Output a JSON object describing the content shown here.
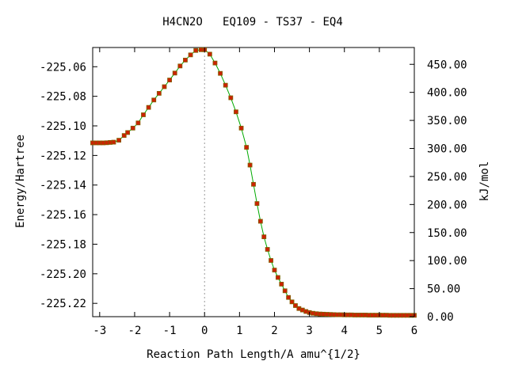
{
  "chart_data": {
    "type": "line",
    "title": "H4CN2O   EQ109 - TS37 - EQ4",
    "xlabel": "Reaction Path Length/A amu^{1/2}",
    "ylabel": "Energy/Hartree",
    "y2label": "kJ/mol",
    "xlim": [
      -3.2,
      6.0
    ],
    "ylim": [
      -225.229,
      -225.047
    ],
    "y2lim": [
      0,
      480
    ],
    "x_ticks": [
      -3,
      -2,
      -1,
      0,
      1,
      2,
      3,
      4,
      5,
      6
    ],
    "x_tick_labels": [
      "-3",
      "-2",
      "-1",
      "0",
      "1",
      "2",
      "3",
      "4",
      "5",
      "6"
    ],
    "y_ticks": [
      -225.06,
      -225.08,
      -225.1,
      -225.12,
      -225.14,
      -225.16,
      -225.18,
      -225.2,
      -225.22
    ],
    "y_tick_labels": [
      "-225.06",
      "-225.08",
      "-225.10",
      "-225.12",
      "-225.14",
      "-225.16",
      "-225.18",
      "-225.20",
      "-225.22"
    ],
    "y2_ticks": [
      0,
      50,
      100,
      150,
      200,
      250,
      300,
      350,
      400,
      450
    ],
    "y2_tick_labels": [
      "0.00",
      "50.00",
      "100.00",
      "150.00",
      "200.00",
      "250.00",
      "300.00",
      "350.00",
      "400.00",
      "450.00"
    ],
    "grid": false,
    "ts_marker_x": 0,
    "line_color": "#00aa00",
    "point_color": "#cc2200",
    "point_stroke": "#806000",
    "ts_line_color": "#999999",
    "series": [
      {
        "values": [
          [
            -3.2,
            -225.1115
          ],
          [
            -3.1,
            -225.1115
          ],
          [
            -3.0,
            -225.1115
          ],
          [
            -2.9,
            -225.1115
          ],
          [
            -2.8,
            -225.1114
          ],
          [
            -2.7,
            -225.1112
          ],
          [
            -2.6,
            -225.111
          ],
          [
            -2.45,
            -225.1097
          ],
          [
            -2.3,
            -225.1065
          ],
          [
            -2.2,
            -225.1045
          ],
          [
            -2.05,
            -225.1015
          ],
          [
            -1.9,
            -225.098
          ],
          [
            -1.75,
            -225.0925
          ],
          [
            -1.6,
            -225.0875
          ],
          [
            -1.45,
            -225.0825
          ],
          [
            -1.3,
            -225.078
          ],
          [
            -1.15,
            -225.0735
          ],
          [
            -1.0,
            -225.069
          ],
          [
            -0.85,
            -225.0643
          ],
          [
            -0.7,
            -225.0595
          ],
          [
            -0.55,
            -225.0555
          ],
          [
            -0.4,
            -225.052
          ],
          [
            -0.25,
            -225.049
          ],
          [
            -0.1,
            -225.0485
          ],
          [
            0.0,
            -225.0485
          ],
          [
            0.15,
            -225.0515
          ],
          [
            0.3,
            -225.0575
          ],
          [
            0.45,
            -225.0645
          ],
          [
            0.6,
            -225.0725
          ],
          [
            0.75,
            -225.081
          ],
          [
            0.9,
            -225.0905
          ],
          [
            1.05,
            -225.1015
          ],
          [
            1.2,
            -225.1145
          ],
          [
            1.3,
            -225.1265
          ],
          [
            1.4,
            -225.1395
          ],
          [
            1.5,
            -225.1525
          ],
          [
            1.6,
            -225.1645
          ],
          [
            1.7,
            -225.175
          ],
          [
            1.8,
            -225.1835
          ],
          [
            1.9,
            -225.191
          ],
          [
            2.0,
            -225.1975
          ],
          [
            2.1,
            -225.2025
          ],
          [
            2.2,
            -225.207
          ],
          [
            2.3,
            -225.2115
          ],
          [
            2.4,
            -225.216
          ],
          [
            2.5,
            -225.219
          ],
          [
            2.6,
            -225.2215
          ],
          [
            2.7,
            -225.2235
          ],
          [
            2.8,
            -225.2245
          ],
          [
            2.9,
            -225.2255
          ],
          [
            3.0,
            -225.2262
          ],
          [
            3.1,
            -225.2267
          ],
          [
            3.2,
            -225.227
          ],
          [
            3.3,
            -225.2272
          ],
          [
            3.4,
            -225.2273
          ],
          [
            3.5,
            -225.2274
          ],
          [
            3.6,
            -225.2275
          ],
          [
            3.7,
            -225.2276
          ],
          [
            3.8,
            -225.2277
          ],
          [
            3.9,
            -225.2277
          ],
          [
            4.0,
            -225.2278
          ],
          [
            4.1,
            -225.2278
          ],
          [
            4.2,
            -225.2278
          ],
          [
            4.3,
            -225.2279
          ],
          [
            4.4,
            -225.2279
          ],
          [
            4.5,
            -225.2279
          ],
          [
            4.6,
            -225.2279
          ],
          [
            4.7,
            -225.228
          ],
          [
            4.8,
            -225.228
          ],
          [
            4.9,
            -225.228
          ],
          [
            5.0,
            -225.228
          ],
          [
            5.1,
            -225.228
          ],
          [
            5.2,
            -225.228
          ],
          [
            5.3,
            -225.2281
          ],
          [
            5.4,
            -225.2281
          ],
          [
            5.5,
            -225.2281
          ],
          [
            5.6,
            -225.2281
          ],
          [
            5.7,
            -225.2281
          ],
          [
            5.8,
            -225.2281
          ],
          [
            5.9,
            -225.2281
          ],
          [
            6.0,
            -225.2281
          ]
        ]
      }
    ]
  }
}
